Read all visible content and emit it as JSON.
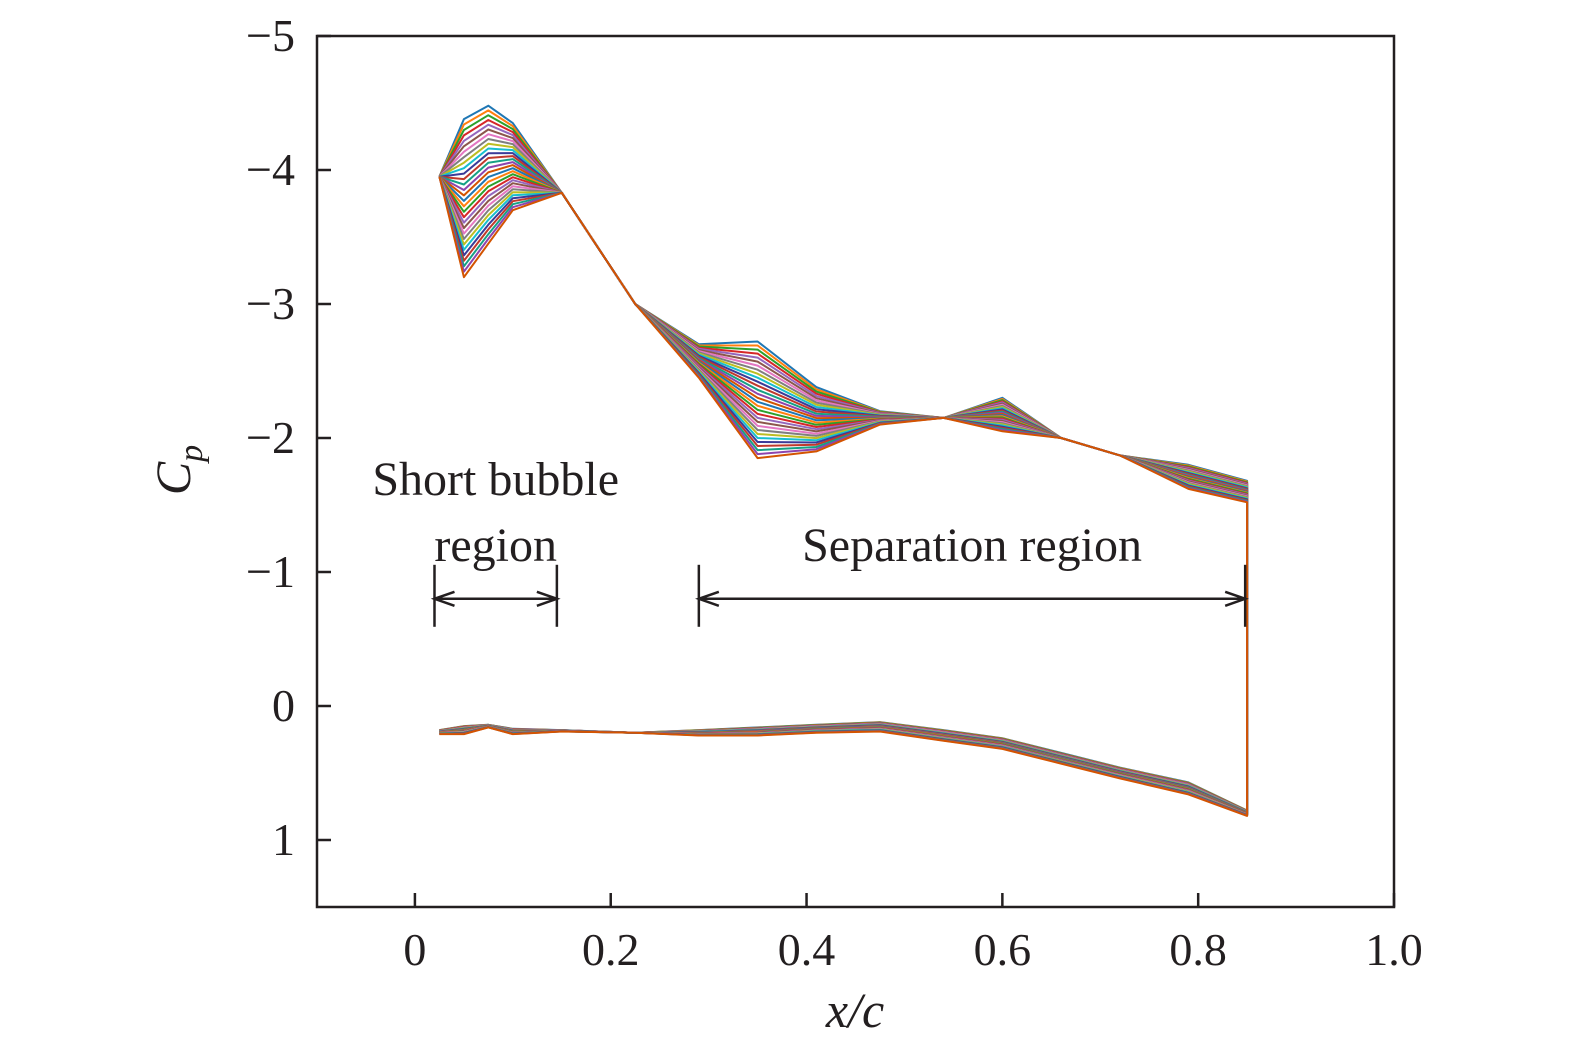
{
  "chart_data": {
    "type": "line",
    "title": "",
    "xlabel": "x/c",
    "ylabel_main": "C",
    "ylabel_sub": "p",
    "xlim": [
      -0.1,
      1.0
    ],
    "ylim": [
      1.5,
      -5.0
    ],
    "y_inverted": true,
    "grid": false,
    "xticks": [
      0,
      0.2,
      0.4,
      0.6,
      0.8,
      1.0
    ],
    "xtick_labels": [
      "0",
      "0.2",
      "0.4",
      "0.6",
      "0.8",
      "1.0"
    ],
    "yticks": [
      -5,
      -4,
      -3,
      -2,
      -1,
      0,
      1
    ],
    "ytick_labels": [
      "−5",
      "−4",
      "−3",
      "−2",
      "−1",
      "0",
      "1"
    ],
    "n_series": 30,
    "upper_surface": {
      "x": [
        0.025,
        0.05,
        0.075,
        0.1,
        0.15,
        0.225,
        0.29,
        0.35,
        0.41,
        0.475,
        0.54,
        0.6,
        0.66,
        0.72,
        0.79,
        0.85
      ],
      "cp_first": [
        -3.95,
        -4.38,
        -4.48,
        -4.35,
        -3.83,
        -3.0,
        -2.7,
        -2.72,
        -2.38,
        -2.2,
        -2.15,
        -2.3,
        -2.0,
        -1.87,
        -1.8,
        -1.68
      ],
      "cp_last": [
        -3.95,
        -3.2,
        -3.45,
        -3.7,
        -3.83,
        -3.0,
        -2.45,
        -1.85,
        -1.9,
        -2.1,
        -2.15,
        -2.05,
        -2.0,
        -1.87,
        -1.62,
        -1.52
      ]
    },
    "lower_surface": {
      "x": [
        0.025,
        0.05,
        0.075,
        0.1,
        0.15,
        0.225,
        0.29,
        0.35,
        0.41,
        0.475,
        0.54,
        0.6,
        0.66,
        0.72,
        0.79,
        0.85
      ],
      "cp_first": [
        0.18,
        0.15,
        0.14,
        0.17,
        0.18,
        0.2,
        0.18,
        0.16,
        0.14,
        0.12,
        0.18,
        0.24,
        0.35,
        0.46,
        0.57,
        0.78
      ],
      "cp_last": [
        0.21,
        0.21,
        0.16,
        0.21,
        0.19,
        0.2,
        0.22,
        0.22,
        0.2,
        0.19,
        0.26,
        0.32,
        0.43,
        0.54,
        0.66,
        0.82
      ]
    },
    "annotations": [
      {
        "lines": [
          "Short bubble",
          "region"
        ],
        "x_start": 0.02,
        "x_end": 0.145,
        "y": -0.8
      },
      {
        "lines": [
          "Separation region"
        ],
        "x_start": 0.29,
        "x_end": 0.848,
        "y": -0.8
      }
    ]
  }
}
